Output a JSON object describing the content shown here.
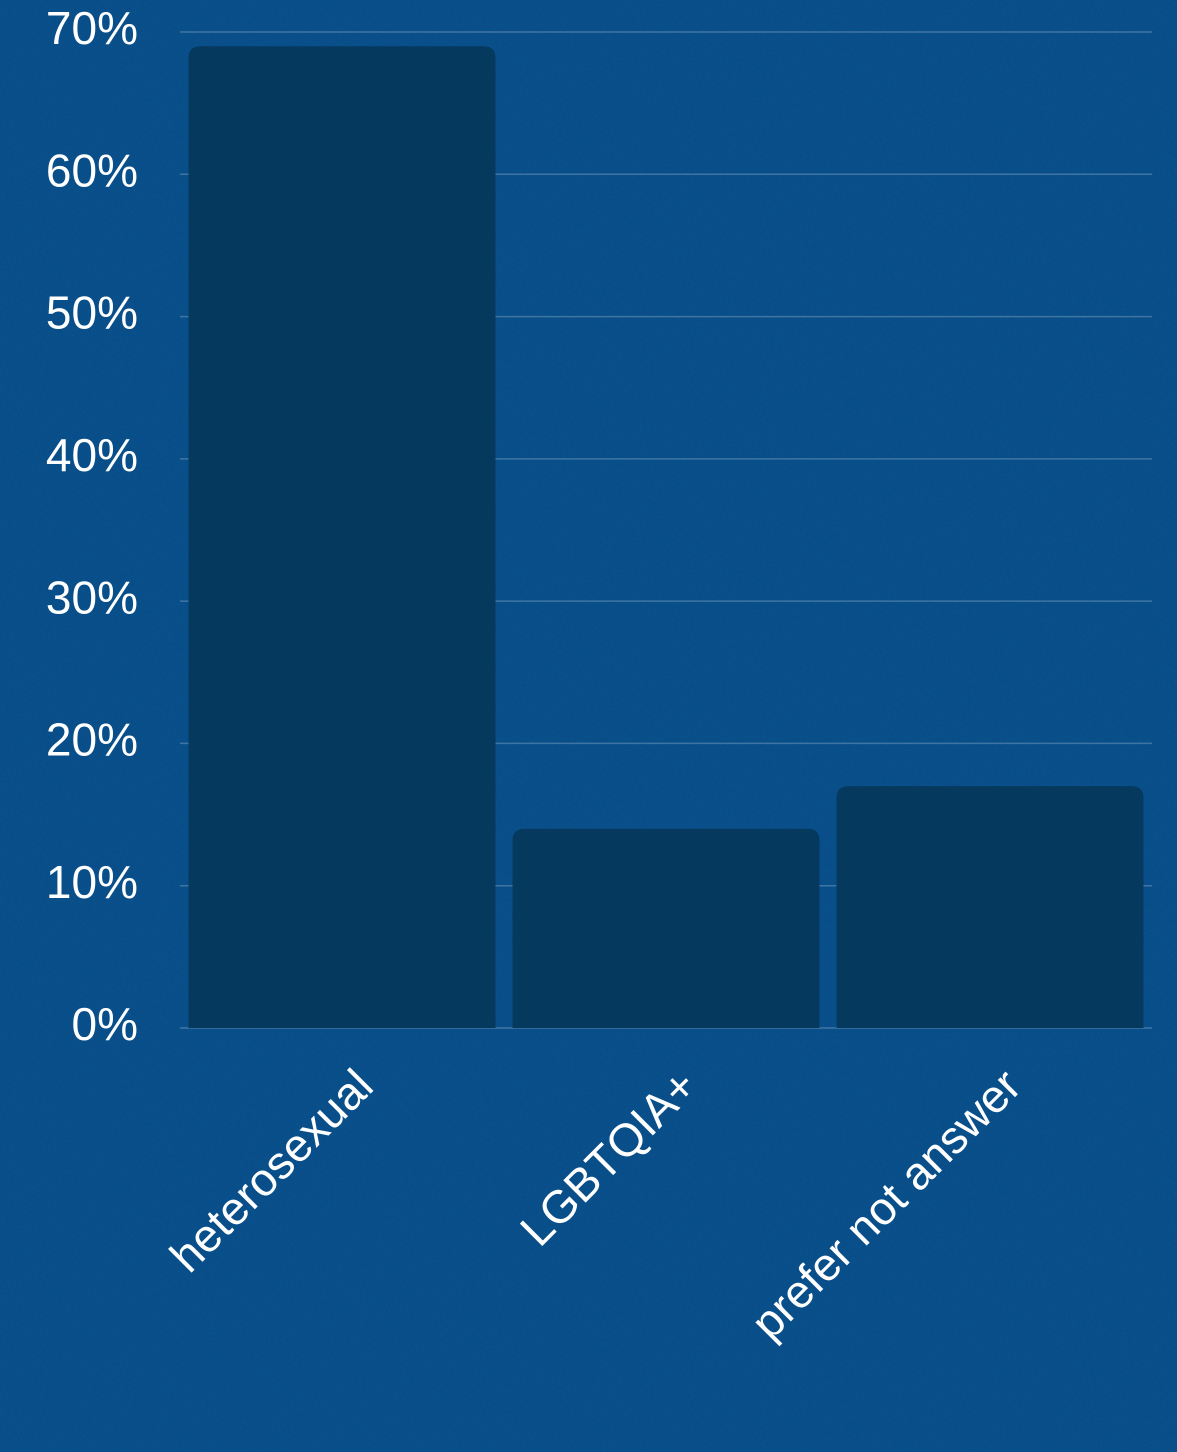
{
  "chart_data": {
    "type": "bar",
    "categories": [
      "heterosexual",
      "LGBTQIA+",
      "prefer not answer"
    ],
    "values": [
      69,
      14,
      17
    ],
    "color": "#05395e",
    "ylim": [
      0,
      70
    ],
    "yticks": [
      {
        "value": 0,
        "label": "0%"
      },
      {
        "value": 10,
        "label": "10%"
      },
      {
        "value": 20,
        "label": "20%"
      },
      {
        "value": 30,
        "label": "30%"
      },
      {
        "value": 40,
        "label": "40%"
      },
      {
        "value": 50,
        "label": "50%"
      },
      {
        "value": 60,
        "label": "60%"
      },
      {
        "value": 70,
        "label": "70%"
      }
    ],
    "grid": true
  }
}
